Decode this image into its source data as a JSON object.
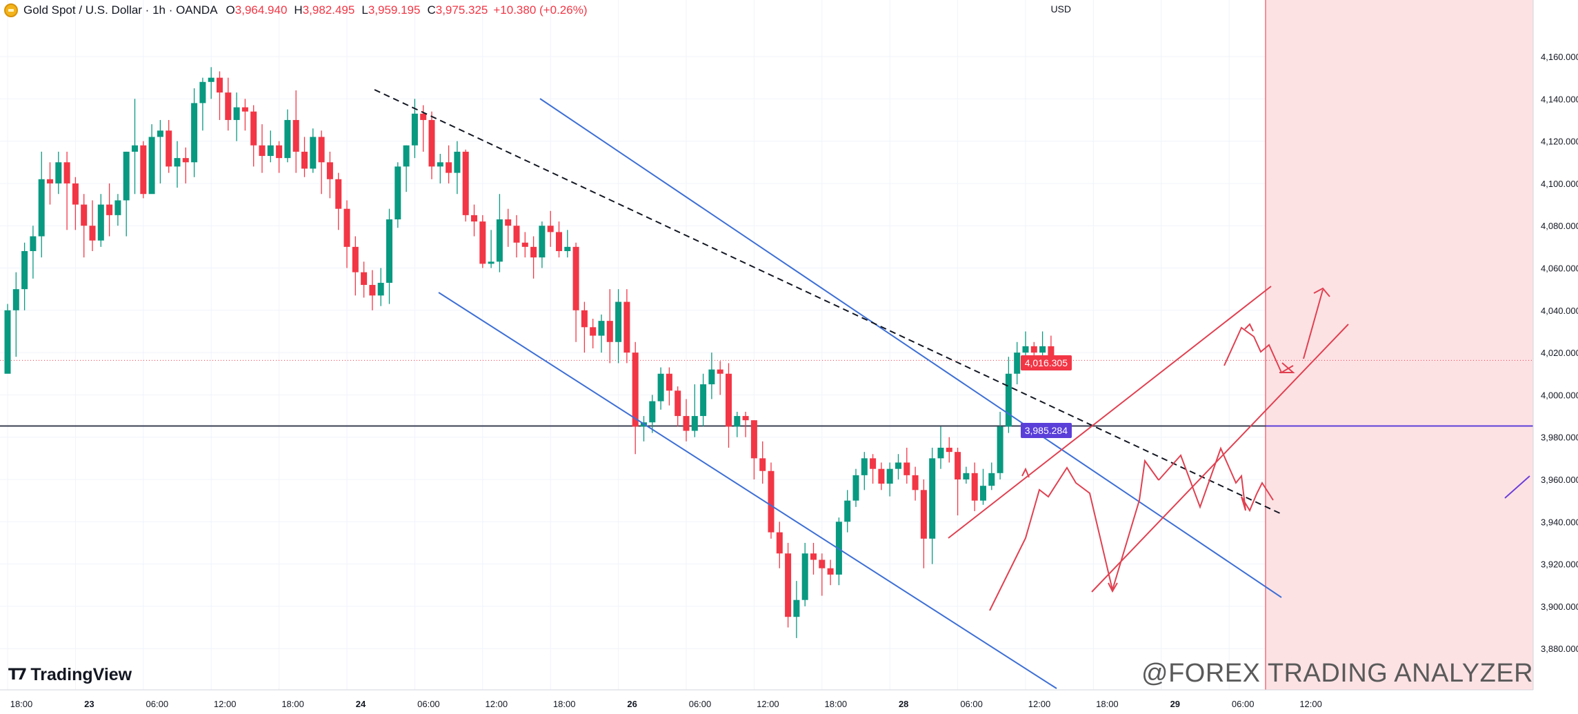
{
  "header": {
    "symbol_title": "Gold Spot / U.S. Dollar · 1h · OANDA",
    "open_label": "O",
    "open_value": "3,964.940",
    "high_label": "H",
    "high_value": "3,982.495",
    "low_label": "L",
    "low_value": "3,959.195",
    "close_label": "C",
    "close_value": "3,975.325",
    "change": "+10.380 (+0.26%)"
  },
  "currency": "USD",
  "branding": {
    "logo_text": "TradingView",
    "watermark": "@FOREX TRADING ANALYZER"
  },
  "price_labels": {
    "last": "4,016.305",
    "level": "3,985.284"
  },
  "colors": {
    "up": "#089981",
    "down": "#f23645",
    "channel": "#3d6fd6",
    "level": "#5b3fd9",
    "zone": "#fde2e4",
    "arrow": "#e04050"
  },
  "chart_data": {
    "type": "candlestick",
    "title": "Gold Spot / U.S. Dollar · 1h · OANDA",
    "ylim": [
      3870,
      4175
    ],
    "y_ticks": [
      "4,160.000",
      "4,140.000",
      "4,120.000",
      "4,100.000",
      "4,080.000",
      "4,060.000",
      "4,040.000",
      "4,020.000",
      "4,000.000",
      "3,980.000",
      "3,960.000",
      "3,940.000",
      "3,920.000",
      "3,900.000",
      "3,880.000"
    ],
    "y_tick_values": [
      4160,
      4140,
      4120,
      4100,
      4080,
      4060,
      4040,
      4020,
      4000,
      3980,
      3960,
      3940,
      3920,
      3900,
      3880
    ],
    "x_labels": [
      "18:00",
      "23",
      "06:00",
      "12:00",
      "18:00",
      "24",
      "06:00",
      "12:00",
      "18:00",
      "26",
      "06:00",
      "12:00",
      "18:00",
      "28",
      "06:00",
      "12:00",
      "18:00",
      "29",
      "06:00",
      "12:00"
    ],
    "x_label_bars": [
      0,
      8,
      16,
      24,
      32,
      40,
      48,
      56,
      64,
      72,
      80,
      88,
      96,
      104,
      112,
      120,
      128,
      136,
      144,
      152
    ],
    "candles": [
      [
        4010,
        4040,
        4012,
        4043
      ],
      [
        4040,
        4050,
        4018,
        4058
      ],
      [
        4050,
        4068,
        4040,
        4072
      ],
      [
        4068,
        4075,
        4055,
        4080
      ],
      [
        4075,
        4102,
        4065,
        4115
      ],
      [
        4102,
        4100,
        4090,
        4110
      ],
      [
        4100,
        4110,
        4095,
        4115
      ],
      [
        4110,
        4100,
        4078,
        4115
      ],
      [
        4100,
        4090,
        4078,
        4103
      ],
      [
        4090,
        4080,
        4065,
        4095
      ],
      [
        4080,
        4073,
        4068,
        4092
      ],
      [
        4073,
        4090,
        4070,
        4095
      ],
      [
        4090,
        4085,
        4075,
        4100
      ],
      [
        4085,
        4092,
        4080,
        4095
      ],
      [
        4092,
        4115,
        4075,
        4115
      ],
      [
        4115,
        4118,
        4095,
        4140
      ],
      [
        4118,
        4095,
        4093,
        4120
      ],
      [
        4095,
        4122,
        4098,
        4128
      ],
      [
        4122,
        4125,
        4100,
        4130
      ],
      [
        4125,
        4108,
        4105,
        4130
      ],
      [
        4108,
        4112,
        4098,
        4120
      ],
      [
        4112,
        4110,
        4100,
        4117
      ],
      [
        4110,
        4138,
        4103,
        4145
      ],
      [
        4138,
        4148,
        4125,
        4150
      ],
      [
        4148,
        4150,
        4140,
        4155
      ],
      [
        4150,
        4143,
        4130,
        4153
      ],
      [
        4143,
        4130,
        4125,
        4150
      ],
      [
        4130,
        4136,
        4120,
        4143
      ],
      [
        4136,
        4134,
        4125,
        4140
      ],
      [
        4134,
        4118,
        4108,
        4137
      ],
      [
        4118,
        4113,
        4105,
        4128
      ],
      [
        4113,
        4118,
        4110,
        4125
      ],
      [
        4118,
        4112,
        4105,
        4120
      ],
      [
        4112,
        4130,
        4110,
        4135
      ],
      [
        4130,
        4115,
        4105,
        4144
      ],
      [
        4115,
        4107,
        4103,
        4122
      ],
      [
        4107,
        4122,
        4105,
        4126
      ],
      [
        4122,
        4110,
        4095,
        4125
      ],
      [
        4110,
        4102,
        4093,
        4115
      ],
      [
        4102,
        4088,
        4078,
        4105
      ],
      [
        4088,
        4070,
        4060,
        4092
      ],
      [
        4070,
        4058,
        4047,
        4075
      ],
      [
        4058,
        4052,
        4046,
        4063
      ],
      [
        4052,
        4047,
        4040,
        4059
      ],
      [
        4047,
        4053,
        4042,
        4060
      ],
      [
        4053,
        4083,
        4043,
        4088
      ],
      [
        4083,
        4108,
        4079,
        4110
      ],
      [
        4108,
        4118,
        4096,
        4118
      ],
      [
        4118,
        4133,
        4112,
        4140
      ],
      [
        4133,
        4130,
        4115,
        4137
      ],
      [
        4130,
        4108,
        4102,
        4134
      ],
      [
        4108,
        4110,
        4100,
        4114
      ],
      [
        4110,
        4105,
        4100,
        4118
      ],
      [
        4105,
        4115,
        4095,
        4120
      ],
      [
        4115,
        4085,
        4082,
        4116
      ],
      [
        4085,
        4082,
        4075,
        4090
      ],
      [
        4082,
        4062,
        4060,
        4085
      ],
      [
        4062,
        4063,
        4060,
        4078
      ],
      [
        4063,
        4083,
        4058,
        4095
      ],
      [
        4083,
        4080,
        4070,
        4088
      ],
      [
        4080,
        4072,
        4065,
        4085
      ],
      [
        4072,
        4070,
        4065,
        4077
      ],
      [
        4070,
        4065,
        4055,
        4075
      ],
      [
        4065,
        4080,
        4060,
        4082
      ],
      [
        4080,
        4077,
        4070,
        4087
      ],
      [
        4077,
        4068,
        4065,
        4082
      ],
      [
        4068,
        4070,
        4065,
        4078
      ],
      [
        4070,
        4040,
        4025,
        4072
      ],
      [
        4040,
        4032,
        4020,
        4044
      ],
      [
        4032,
        4028,
        4022,
        4036
      ],
      [
        4028,
        4035,
        4020,
        4038
      ],
      [
        4035,
        4025,
        4015,
        4050
      ],
      [
        4025,
        4044,
        4015,
        4050
      ],
      [
        4044,
        4020,
        4015,
        4050
      ],
      [
        4020,
        3985,
        3972,
        4025
      ],
      [
        3985,
        3987,
        3978,
        3990
      ],
      [
        3987,
        3997,
        3982,
        4000
      ],
      [
        3997,
        4010,
        3993,
        4013
      ],
      [
        4010,
        4002,
        3995,
        4013
      ],
      [
        4002,
        3990,
        3985,
        4004
      ],
      [
        3990,
        3983,
        3978,
        3998
      ],
      [
        3983,
        3990,
        3980,
        4005
      ],
      [
        3990,
        4005,
        3985,
        4010
      ],
      [
        4005,
        4012,
        3998,
        4020
      ],
      [
        4012,
        4010,
        4000,
        4016
      ],
      [
        4010,
        3985,
        3975,
        4015
      ],
      [
        3985,
        3990,
        3980,
        3992
      ],
      [
        3990,
        3988,
        3980,
        3992
      ],
      [
        3988,
        3970,
        3960,
        3988
      ],
      [
        3970,
        3964,
        3958,
        3978
      ],
      [
        3964,
        3935,
        3932,
        3968
      ],
      [
        3935,
        3925,
        3918,
        3940
      ],
      [
        3925,
        3895,
        3890,
        3930
      ],
      [
        3895,
        3903,
        3885,
        3912
      ],
      [
        3903,
        3925,
        3900,
        3930
      ],
      [
        3925,
        3922,
        3915,
        3930
      ],
      [
        3922,
        3918,
        3905,
        3925
      ],
      [
        3918,
        3915,
        3910,
        3922
      ],
      [
        3915,
        3940,
        3910,
        3942
      ],
      [
        3940,
        3950,
        3935,
        3955
      ],
      [
        3950,
        3962,
        3947,
        3965
      ],
      [
        3962,
        3970,
        3955,
        3973
      ],
      [
        3970,
        3965,
        3958,
        3972
      ],
      [
        3965,
        3958,
        3955,
        3968
      ],
      [
        3958,
        3965,
        3952,
        3968
      ],
      [
        3965,
        3968,
        3960,
        3972
      ],
      [
        3968,
        3962,
        3958,
        3975
      ],
      [
        3962,
        3955,
        3950,
        3966
      ],
      [
        3955,
        3932,
        3918,
        3960
      ],
      [
        3932,
        3970,
        3920,
        3975
      ],
      [
        3970,
        3975,
        3965,
        3985
      ],
      [
        3975,
        3973,
        3968,
        3980
      ],
      [
        3973,
        3960,
        3943,
        3975
      ],
      [
        3960,
        3963,
        3958,
        3966
      ],
      [
        3963,
        3950,
        3945,
        3968
      ],
      [
        3950,
        3957,
        3948,
        3965
      ],
      [
        3957,
        3963,
        3955,
        3968
      ],
      [
        3963,
        3985,
        3960,
        3992
      ],
      [
        3985,
        4010,
        3982,
        4018
      ],
      [
        4010,
        4020,
        4005,
        4025
      ],
      [
        4020,
        4023,
        4018,
        4030
      ],
      [
        4023,
        4020,
        4015,
        4025
      ],
      [
        4020,
        4023,
        4015,
        4030
      ],
      [
        4023,
        4016,
        4012,
        4028
      ]
    ]
  }
}
